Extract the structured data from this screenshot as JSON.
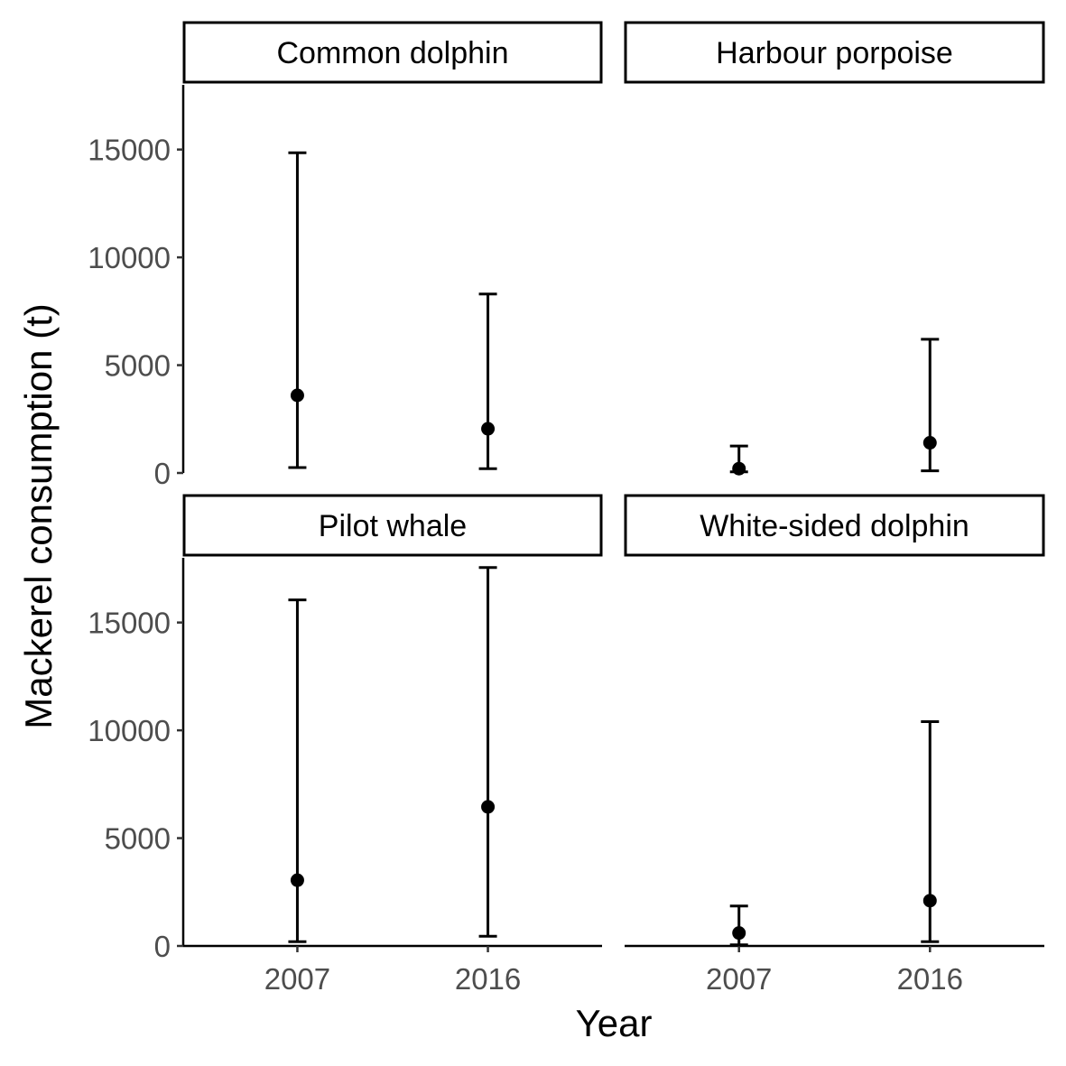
{
  "chart_data": {
    "type": "errorbar",
    "xlabel": "Year",
    "ylabel": "Mackerel consumption (t)",
    "categories": [
      "2007",
      "2016"
    ],
    "ylim": [
      0,
      18000
    ],
    "yticks": [
      0,
      5000,
      10000,
      15000
    ],
    "facets": [
      {
        "title": "Common dolphin",
        "points": [
          {
            "x": "2007",
            "y": 3600,
            "lower": 250,
            "upper": 14850
          },
          {
            "x": "2016",
            "y": 2050,
            "lower": 200,
            "upper": 8300
          }
        ]
      },
      {
        "title": "Harbour porpoise",
        "points": [
          {
            "x": "2007",
            "y": 200,
            "lower": 50,
            "upper": 1250
          },
          {
            "x": "2016",
            "y": 1400,
            "lower": 100,
            "upper": 6200
          }
        ]
      },
      {
        "title": "Pilot whale",
        "points": [
          {
            "x": "2007",
            "y": 3050,
            "lower": 200,
            "upper": 16050
          },
          {
            "x": "2016",
            "y": 6450,
            "lower": 450,
            "upper": 17550
          }
        ]
      },
      {
        "title": "White-sided dolphin",
        "points": [
          {
            "x": "2007",
            "y": 600,
            "lower": 50,
            "upper": 1850
          },
          {
            "x": "2016",
            "y": 2100,
            "lower": 200,
            "upper": 10400
          }
        ]
      }
    ]
  }
}
